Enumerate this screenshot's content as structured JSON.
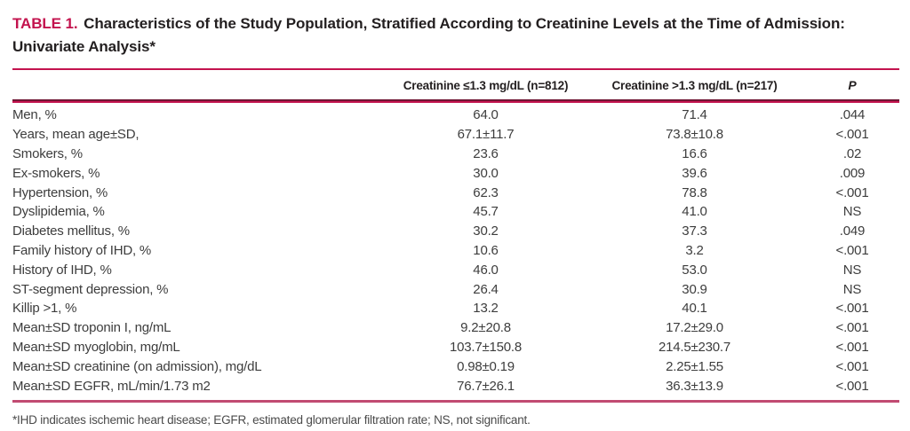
{
  "colors": {
    "accent": "#c3134e",
    "heavy_rule_dark": "#6e1533",
    "body_text": "#3d3d3d"
  },
  "table": {
    "label": "TABLE 1.",
    "title": "Characteristics of the Study Population, Stratified According to Creatinine Levels at the Time of Admission: Univariate Analysis*",
    "header": {
      "col1": "Creatinine ≤1.3 mg/dL (n=812)",
      "col2": "Creatinine >1.3 mg/dL (n=217)",
      "p": "P"
    },
    "rows": [
      {
        "label": "Men, %",
        "v1": "64.0",
        "v2": "71.4",
        "p": ".044"
      },
      {
        "label": "Years, mean age±SD,",
        "v1": "67.1±11.7",
        "v2": "73.8±10.8",
        "p": "<.001"
      },
      {
        "label": "Smokers, %",
        "v1": "23.6",
        "v2": "16.6",
        "p": ".02"
      },
      {
        "label": "Ex-smokers, %",
        "v1": "30.0",
        "v2": "39.6",
        "p": ".009"
      },
      {
        "label": "Hypertension, %",
        "v1": "62.3",
        "v2": "78.8",
        "p": "<.001"
      },
      {
        "label": "Dyslipidemia, %",
        "v1": "45.7",
        "v2": "41.0",
        "p": "NS"
      },
      {
        "label": "Diabetes mellitus, %",
        "v1": "30.2",
        "v2": "37.3",
        "p": ".049"
      },
      {
        "label": "Family history of IHD, %",
        "v1": "10.6",
        "v2": "3.2",
        "p": "<.001"
      },
      {
        "label": "History of IHD, %",
        "v1": "46.0",
        "v2": "53.0",
        "p": "NS"
      },
      {
        "label": "ST-segment depression, %",
        "v1": "26.4",
        "v2": "30.9",
        "p": "NS"
      },
      {
        "label": "Killip >1, %",
        "v1": "13.2",
        "v2": "40.1",
        "p": "<.001"
      },
      {
        "label": "Mean±SD troponin I, ng/mL",
        "v1": "9.2±20.8",
        "v2": "17.2±29.0",
        "p": "<.001"
      },
      {
        "label": "Mean±SD myoglobin, mg/mL",
        "v1": "103.7±150.8",
        "v2": "214.5±230.7",
        "p": "<.001"
      },
      {
        "label": "Mean±SD creatinine (on admission), mg/dL",
        "v1": "0.98±0.19",
        "v2": "2.25±1.55",
        "p": "<.001"
      },
      {
        "label": "Mean±SD EGFR, mL/min/1.73 m2",
        "v1": "76.7±26.1",
        "v2": "36.3±13.9",
        "p": "<.001"
      }
    ],
    "footnote": "*IHD indicates ischemic heart disease; EGFR, estimated glomerular filtration rate; NS, not significant."
  }
}
